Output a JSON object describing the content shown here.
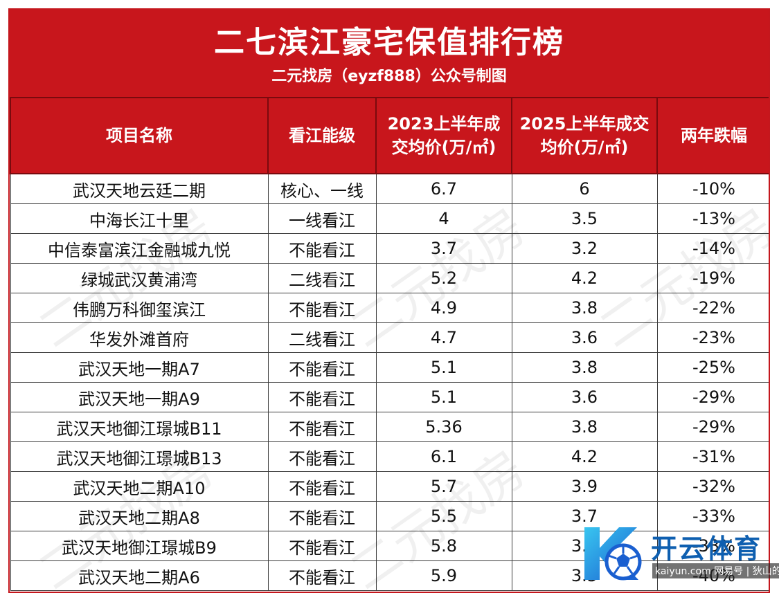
{
  "header": {
    "title": "二七滨江豪宅保值排行榜",
    "subtitle": "二元找房（eyzf888）公众号制图"
  },
  "table": {
    "columns": [
      "项目名称",
      "看江能级",
      "2023上半年成交均价(万/㎡)",
      "2025上半年成交均价(万/㎡)",
      "两年跌幅"
    ],
    "rows": [
      [
        "武汉天地云廷二期",
        "核心、一线",
        "6.7",
        "6",
        "-10%"
      ],
      [
        "中海长江十里",
        "一线看江",
        "4",
        "3.5",
        "-13%"
      ],
      [
        "中信泰富滨江金融城九悦",
        "不能看江",
        "3.7",
        "3.2",
        "-14%"
      ],
      [
        "绿城武汉黄浦湾",
        "二线看江",
        "5.2",
        "4.2",
        "-19%"
      ],
      [
        "伟鹏万科御玺滨江",
        "不能看江",
        "4.9",
        "3.8",
        "-22%"
      ],
      [
        "华发外滩首府",
        "二线看江",
        "4.7",
        "3.6",
        "-23%"
      ],
      [
        "武汉天地一期A7",
        "不能看江",
        "5.1",
        "3.8",
        "-25%"
      ],
      [
        "武汉天地一期A9",
        "不能看江",
        "5.1",
        "3.6",
        "-29%"
      ],
      [
        "武汉天地御江璟城B11",
        "不能看江",
        "5.36",
        "3.8",
        "-29%"
      ],
      [
        "武汉天地御江璟城B13",
        "不能看江",
        "6.1",
        "4.2",
        "-31%"
      ],
      [
        "武汉天地二期A10",
        "不能看江",
        "5.7",
        "3.9",
        "-32%"
      ],
      [
        "武汉天地二期A8",
        "不能看江",
        "5.5",
        "3.7",
        "-33%"
      ],
      [
        "武汉天地御江璟城B9",
        "不能看江",
        "5.8",
        "3.9",
        "-33%"
      ],
      [
        "武汉天地二期A6",
        "不能看江",
        "5.9",
        "3.5",
        "-40%"
      ]
    ]
  },
  "watermark": {
    "text": "二元找房"
  },
  "logo": {
    "name": "开云体育",
    "url": "kaiyun.com 网易号 | 狄山的话",
    "icon": "ball-logo-icon"
  },
  "colors": {
    "header_red": "#c8161c",
    "logo_blue": "#0e5fb0"
  }
}
